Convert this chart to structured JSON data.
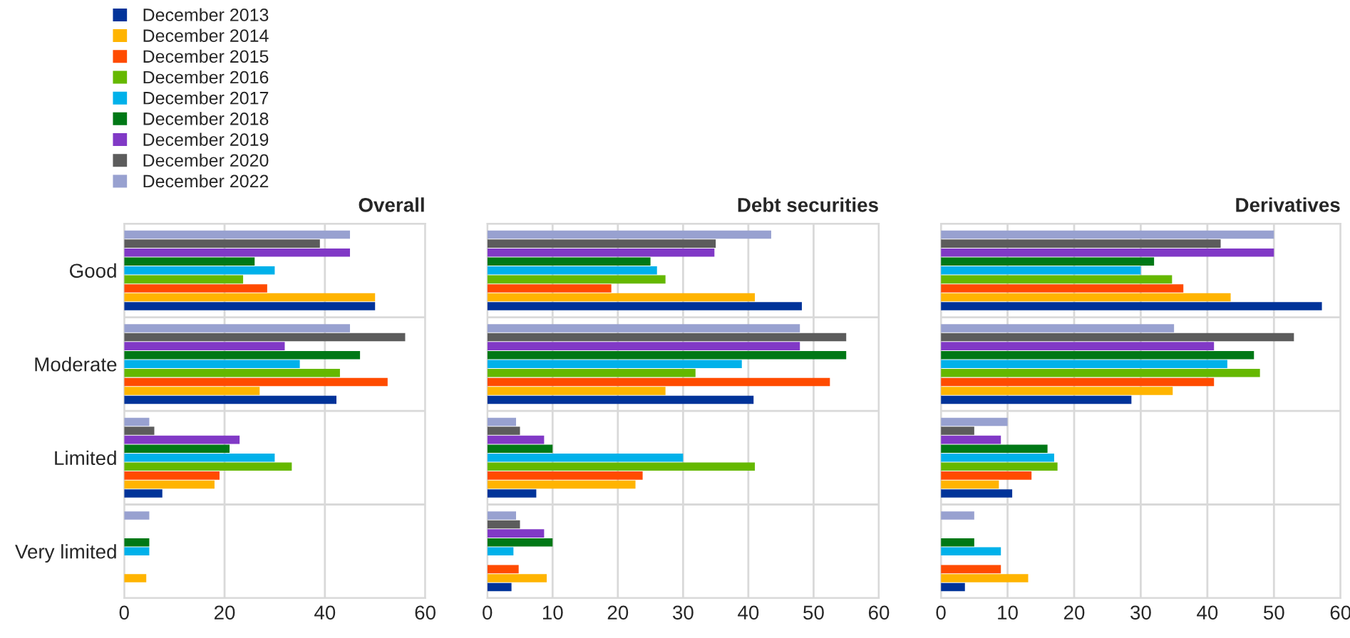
{
  "chart_data": [
    {
      "type": "bar",
      "orientation": "horizontal",
      "title": "Overall",
      "categories": [
        "Good",
        "Moderate",
        "Limited",
        "Very limited"
      ],
      "xlim": [
        0,
        60
      ],
      "xticks": [
        0,
        20,
        40,
        60
      ],
      "grid": true,
      "legend": "top left",
      "series": [
        {
          "name": "December 2013",
          "color": "#003399",
          "values": [
            50,
            42.3,
            7.6,
            null
          ]
        },
        {
          "name": "December 2014",
          "color": "#ffb400",
          "values": [
            50,
            27,
            18,
            4.4
          ]
        },
        {
          "name": "December 2015",
          "color": "#ff4b00",
          "values": [
            28.5,
            52.5,
            19,
            null
          ]
        },
        {
          "name": "December 2016",
          "color": "#65b800",
          "values": [
            23.7,
            43,
            33.4,
            null
          ]
        },
        {
          "name": "December 2017",
          "color": "#00b1ea",
          "values": [
            30,
            35,
            30,
            5
          ]
        },
        {
          "name": "December 2018",
          "color": "#007816",
          "values": [
            26,
            47,
            21,
            5
          ]
        },
        {
          "name": "December 2019",
          "color": "#8139c6",
          "values": [
            45,
            32,
            23,
            null
          ]
        },
        {
          "name": "December 2020",
          "color": "#5c5c5c",
          "values": [
            39,
            56,
            6,
            null
          ]
        },
        {
          "name": "December 2022",
          "color": "#98a1d0",
          "values": [
            45,
            45,
            5,
            5
          ]
        }
      ]
    },
    {
      "type": "bar",
      "orientation": "horizontal",
      "title": "Debt securities",
      "categories": [
        null,
        null,
        null,
        null
      ],
      "xlim": [
        0,
        60
      ],
      "xticks": [
        0,
        10,
        20,
        30,
        40,
        50,
        60
      ],
      "grid": true,
      "series": [
        {
          "color": "#003399",
          "values": [
            48.2,
            40.8,
            7.5,
            3.7
          ]
        },
        {
          "color": "#ffb400",
          "values": [
            41,
            27.3,
            22.7,
            9.1
          ]
        },
        {
          "color": "#ff4b00",
          "values": [
            19,
            52.5,
            23.8,
            4.8
          ]
        },
        {
          "color": "#65b800",
          "values": [
            27.3,
            31.9,
            41,
            null
          ]
        },
        {
          "color": "#00b1ea",
          "values": [
            26,
            39,
            30,
            4
          ]
        },
        {
          "color": "#007816",
          "values": [
            25,
            55,
            10,
            10
          ]
        },
        {
          "color": "#8139c6",
          "values": [
            34.8,
            47.9,
            8.7,
            8.7
          ]
        },
        {
          "color": "#5c5c5c",
          "values": [
            35,
            55,
            5,
            5
          ]
        },
        {
          "color": "#98a1d0",
          "values": [
            43.5,
            47.9,
            4.4,
            4.4
          ]
        }
      ]
    },
    {
      "type": "bar",
      "orientation": "horizontal",
      "title": "Derivatives",
      "categories": [
        null,
        null,
        null,
        null
      ],
      "xlim": [
        0,
        60
      ],
      "xticks": [
        0,
        10,
        20,
        30,
        40,
        50,
        60
      ],
      "grid": true,
      "series": [
        {
          "color": "#003399",
          "values": [
            57.2,
            28.6,
            10.7,
            3.6
          ]
        },
        {
          "color": "#ffb400",
          "values": [
            43.5,
            34.8,
            8.7,
            13.1
          ]
        },
        {
          "color": "#ff4b00",
          "values": [
            36.4,
            41,
            13.6,
            9
          ]
        },
        {
          "color": "#65b800",
          "values": [
            34.7,
            47.9,
            17.5,
            null
          ]
        },
        {
          "color": "#00b1ea",
          "values": [
            30,
            43,
            17,
            9
          ]
        },
        {
          "color": "#007816",
          "values": [
            32,
            47,
            16,
            5
          ]
        },
        {
          "color": "#8139c6",
          "values": [
            50,
            41,
            9,
            null
          ]
        },
        {
          "color": "#5c5c5c",
          "values": [
            42,
            53,
            5,
            null
          ]
        },
        {
          "color": "#98a1d0",
          "values": [
            50,
            35,
            10,
            5
          ]
        }
      ]
    }
  ]
}
